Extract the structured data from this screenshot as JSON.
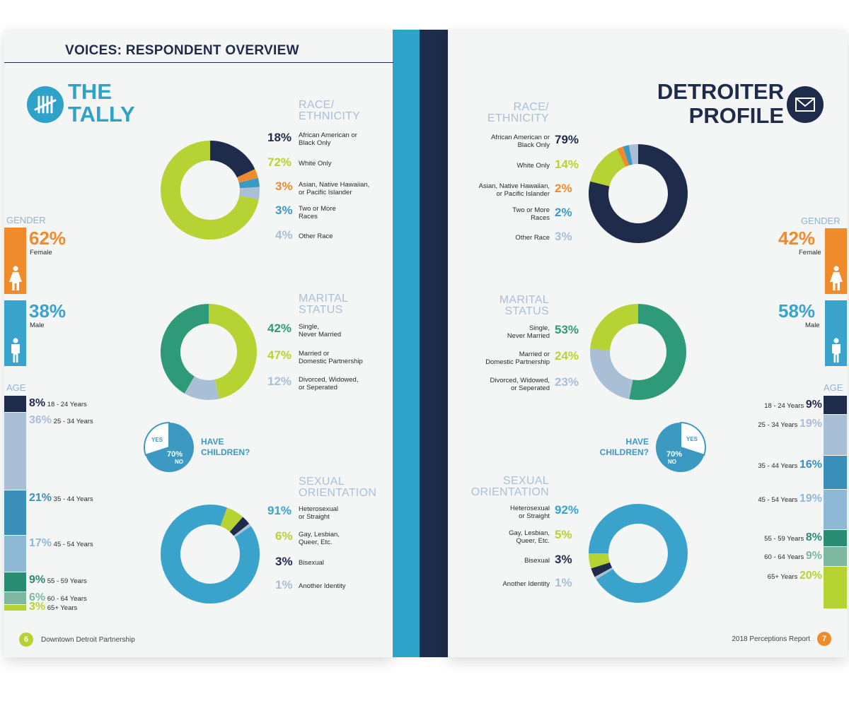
{
  "colors": {
    "navy": "#1f2b4b",
    "lime": "#b7d333",
    "orange": "#f08b2c",
    "mid_blue": "#3c9ac2",
    "light_blue": "#a9bfd6",
    "teal": "#2f9a78",
    "sky": "#3aa3cc",
    "age1": "#1f2b4b",
    "age2": "#a9bfd6",
    "age3": "#3a8fb8",
    "age4": "#8fb8d4",
    "age5": "#2a8c73",
    "age6": "#7fb8a0",
    "age7": "#b7d333"
  },
  "left": {
    "header": "VOICES: RESPONDENT OVERVIEW",
    "title_line1": "THE",
    "title_line2": "TALLY",
    "title_icon": "tally-marks-icon",
    "race": {
      "title_line1": "RACE/",
      "title_line2": "ETHNICITY",
      "items": [
        {
          "pct": "18%",
          "label1": "African American or",
          "label2": "Black Only",
          "value": 18,
          "color": "#1f2b4b"
        },
        {
          "pct": "72%",
          "label1": "White Only",
          "label2": "",
          "value": 72,
          "color": "#b7d333"
        },
        {
          "pct": "3%",
          "label1": "Asian, Native Hawaiian,",
          "label2": "or Pacific Islander",
          "value": 3,
          "color": "#f08b2c"
        },
        {
          "pct": "3%",
          "label1": "Two or More",
          "label2": "Races",
          "value": 3,
          "color": "#3c9ac2"
        },
        {
          "pct": "4%",
          "label1": "Other Race",
          "label2": "",
          "value": 4,
          "color": "#a9bfd6"
        }
      ]
    },
    "marital": {
      "title_line1": "MARITAL",
      "title_line2": "STATUS",
      "items": [
        {
          "pct": "42%",
          "label1": "Single,",
          "label2": "Never Married",
          "value": 42,
          "color": "#2f9a78"
        },
        {
          "pct": "47%",
          "label1": "Married or",
          "label2": "Domestic Partnership",
          "value": 47,
          "color": "#b7d333"
        },
        {
          "pct": "12%",
          "label1": "Divorced, Widowed,",
          "label2": "or Seperated",
          "value": 12,
          "color": "#a9bfd6"
        }
      ]
    },
    "sexual": {
      "title_line1": "SEXUAL",
      "title_line2": "ORIENTATION",
      "items": [
        {
          "pct": "91%",
          "label1": "Heterosexual",
          "label2": "or Straight",
          "value": 91,
          "color": "#3aa3cc"
        },
        {
          "pct": "6%",
          "label1": "Gay, Lesbian,",
          "label2": "Queer, Etc.",
          "value": 6,
          "color": "#b7d333"
        },
        {
          "pct": "3%",
          "label1": "Bisexual",
          "label2": "",
          "value": 3,
          "color": "#1f2b4b"
        },
        {
          "pct": "1%",
          "label1": "Another Identity",
          "label2": "",
          "value": 1,
          "color": "#a9bfd6"
        }
      ]
    },
    "children": {
      "q1": "HAVE",
      "q2": "CHILDREN?",
      "yes": "YES",
      "no_pct": "70%",
      "no": "NO",
      "yes_value": 30
    },
    "gender": {
      "title": "GENDER",
      "female_pct": "62%",
      "female": "Female",
      "male_pct": "38%",
      "male": "Male",
      "female_value": 62,
      "male_value": 38
    },
    "age": {
      "title": "AGE",
      "items": [
        {
          "pct": "8%",
          "label": "18 - 24 Years",
          "value": 8
        },
        {
          "pct": "36%",
          "label": "25 - 34 Years",
          "value": 36
        },
        {
          "pct": "21%",
          "label": "35 - 44 Years",
          "value": 21
        },
        {
          "pct": "17%",
          "label": "45 - 54 Years",
          "value": 17
        },
        {
          "pct": "9%",
          "label": "55 - 59 Years",
          "value": 9
        },
        {
          "pct": "6%",
          "label": "60 - 64 Years",
          "value": 6
        },
        {
          "pct": "3%",
          "label": "65+ Years",
          "value": 3
        }
      ]
    },
    "footer": {
      "page": "6",
      "text": "Downtown Detroit Partnership"
    }
  },
  "right": {
    "title_line1": "DETROITER",
    "title_line2": "PROFILE",
    "title_icon": "envelope-icon",
    "race": {
      "title_line1": "RACE/",
      "title_line2": "ETHNICITY",
      "items": [
        {
          "pct": "79%",
          "label1": "African American or",
          "label2": "Black Only",
          "value": 79,
          "color": "#1f2b4b"
        },
        {
          "pct": "14%",
          "label1": "White Only",
          "label2": "",
          "value": 14,
          "color": "#b7d333"
        },
        {
          "pct": "2%",
          "label1": "Asian, Native Hawaiian,",
          "label2": "or Pacific Islander",
          "value": 2,
          "color": "#f08b2c"
        },
        {
          "pct": "2%",
          "label1": "Two or More",
          "label2": "Races",
          "value": 2,
          "color": "#3c9ac2"
        },
        {
          "pct": "3%",
          "label1": "Other Race",
          "label2": "",
          "value": 3,
          "color": "#a9bfd6"
        }
      ]
    },
    "marital": {
      "title_line1": "MARITAL",
      "title_line2": "STATUS",
      "items": [
        {
          "pct": "53%",
          "label1": "Single,",
          "label2": "Never Married",
          "value": 53,
          "color": "#2f9a78"
        },
        {
          "pct": "24%",
          "label1": "Married or",
          "label2": "Domestic Partnership",
          "value": 24,
          "color": "#b7d333"
        },
        {
          "pct": "23%",
          "label1": "Divorced, Widowed,",
          "label2": "or Seperated",
          "value": 23,
          "color": "#a9bfd6"
        }
      ]
    },
    "sexual": {
      "title_line1": "SEXUAL",
      "title_line2": "ORIENTATION",
      "items": [
        {
          "pct": "92%",
          "label1": "Heterosexual",
          "label2": "or Straight",
          "value": 92,
          "color": "#3aa3cc"
        },
        {
          "pct": "5%",
          "label1": "Gay, Lesbian,",
          "label2": "Queer, Etc.",
          "value": 5,
          "color": "#b7d333"
        },
        {
          "pct": "3%",
          "label1": "Bisexual",
          "label2": "",
          "value": 3,
          "color": "#1f2b4b"
        },
        {
          "pct": "1%",
          "label1": "Another Identity",
          "label2": "",
          "value": 1,
          "color": "#a9bfd6"
        }
      ]
    },
    "children": {
      "q1": "HAVE",
      "q2": "CHILDREN?",
      "yes": "YES",
      "no_pct": "70%",
      "no": "NO",
      "yes_value": 30
    },
    "gender": {
      "title": "GENDER",
      "female_pct": "42%",
      "female": "Female",
      "male_pct": "58%",
      "male": "Male",
      "female_value": 42,
      "male_value": 58
    },
    "age": {
      "title": "AGE",
      "items": [
        {
          "pct": "9%",
          "label": "18 - 24 Years",
          "value": 9
        },
        {
          "pct": "19%",
          "label": "25 - 34 Years",
          "value": 19
        },
        {
          "pct": "16%",
          "label": "35 - 44 Years",
          "value": 16
        },
        {
          "pct": "19%",
          "label": "45 - 54 Years",
          "value": 19
        },
        {
          "pct": "8%",
          "label": "55 - 59 Years",
          "value": 8
        },
        {
          "pct": "9%",
          "label": "60 - 64 Years",
          "value": 9
        },
        {
          "pct": "20%",
          "label": "65+ Years",
          "value": 20
        }
      ]
    },
    "footer": {
      "page": "7",
      "text": "2018 Perceptions Report"
    }
  }
}
